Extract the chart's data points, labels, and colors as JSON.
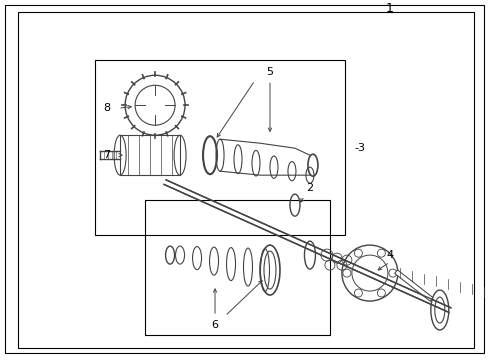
{
  "bg_color": "#ffffff",
  "lc": "#444444",
  "bc": "#000000",
  "figsize": [
    4.9,
    3.6
  ],
  "dpi": 100
}
